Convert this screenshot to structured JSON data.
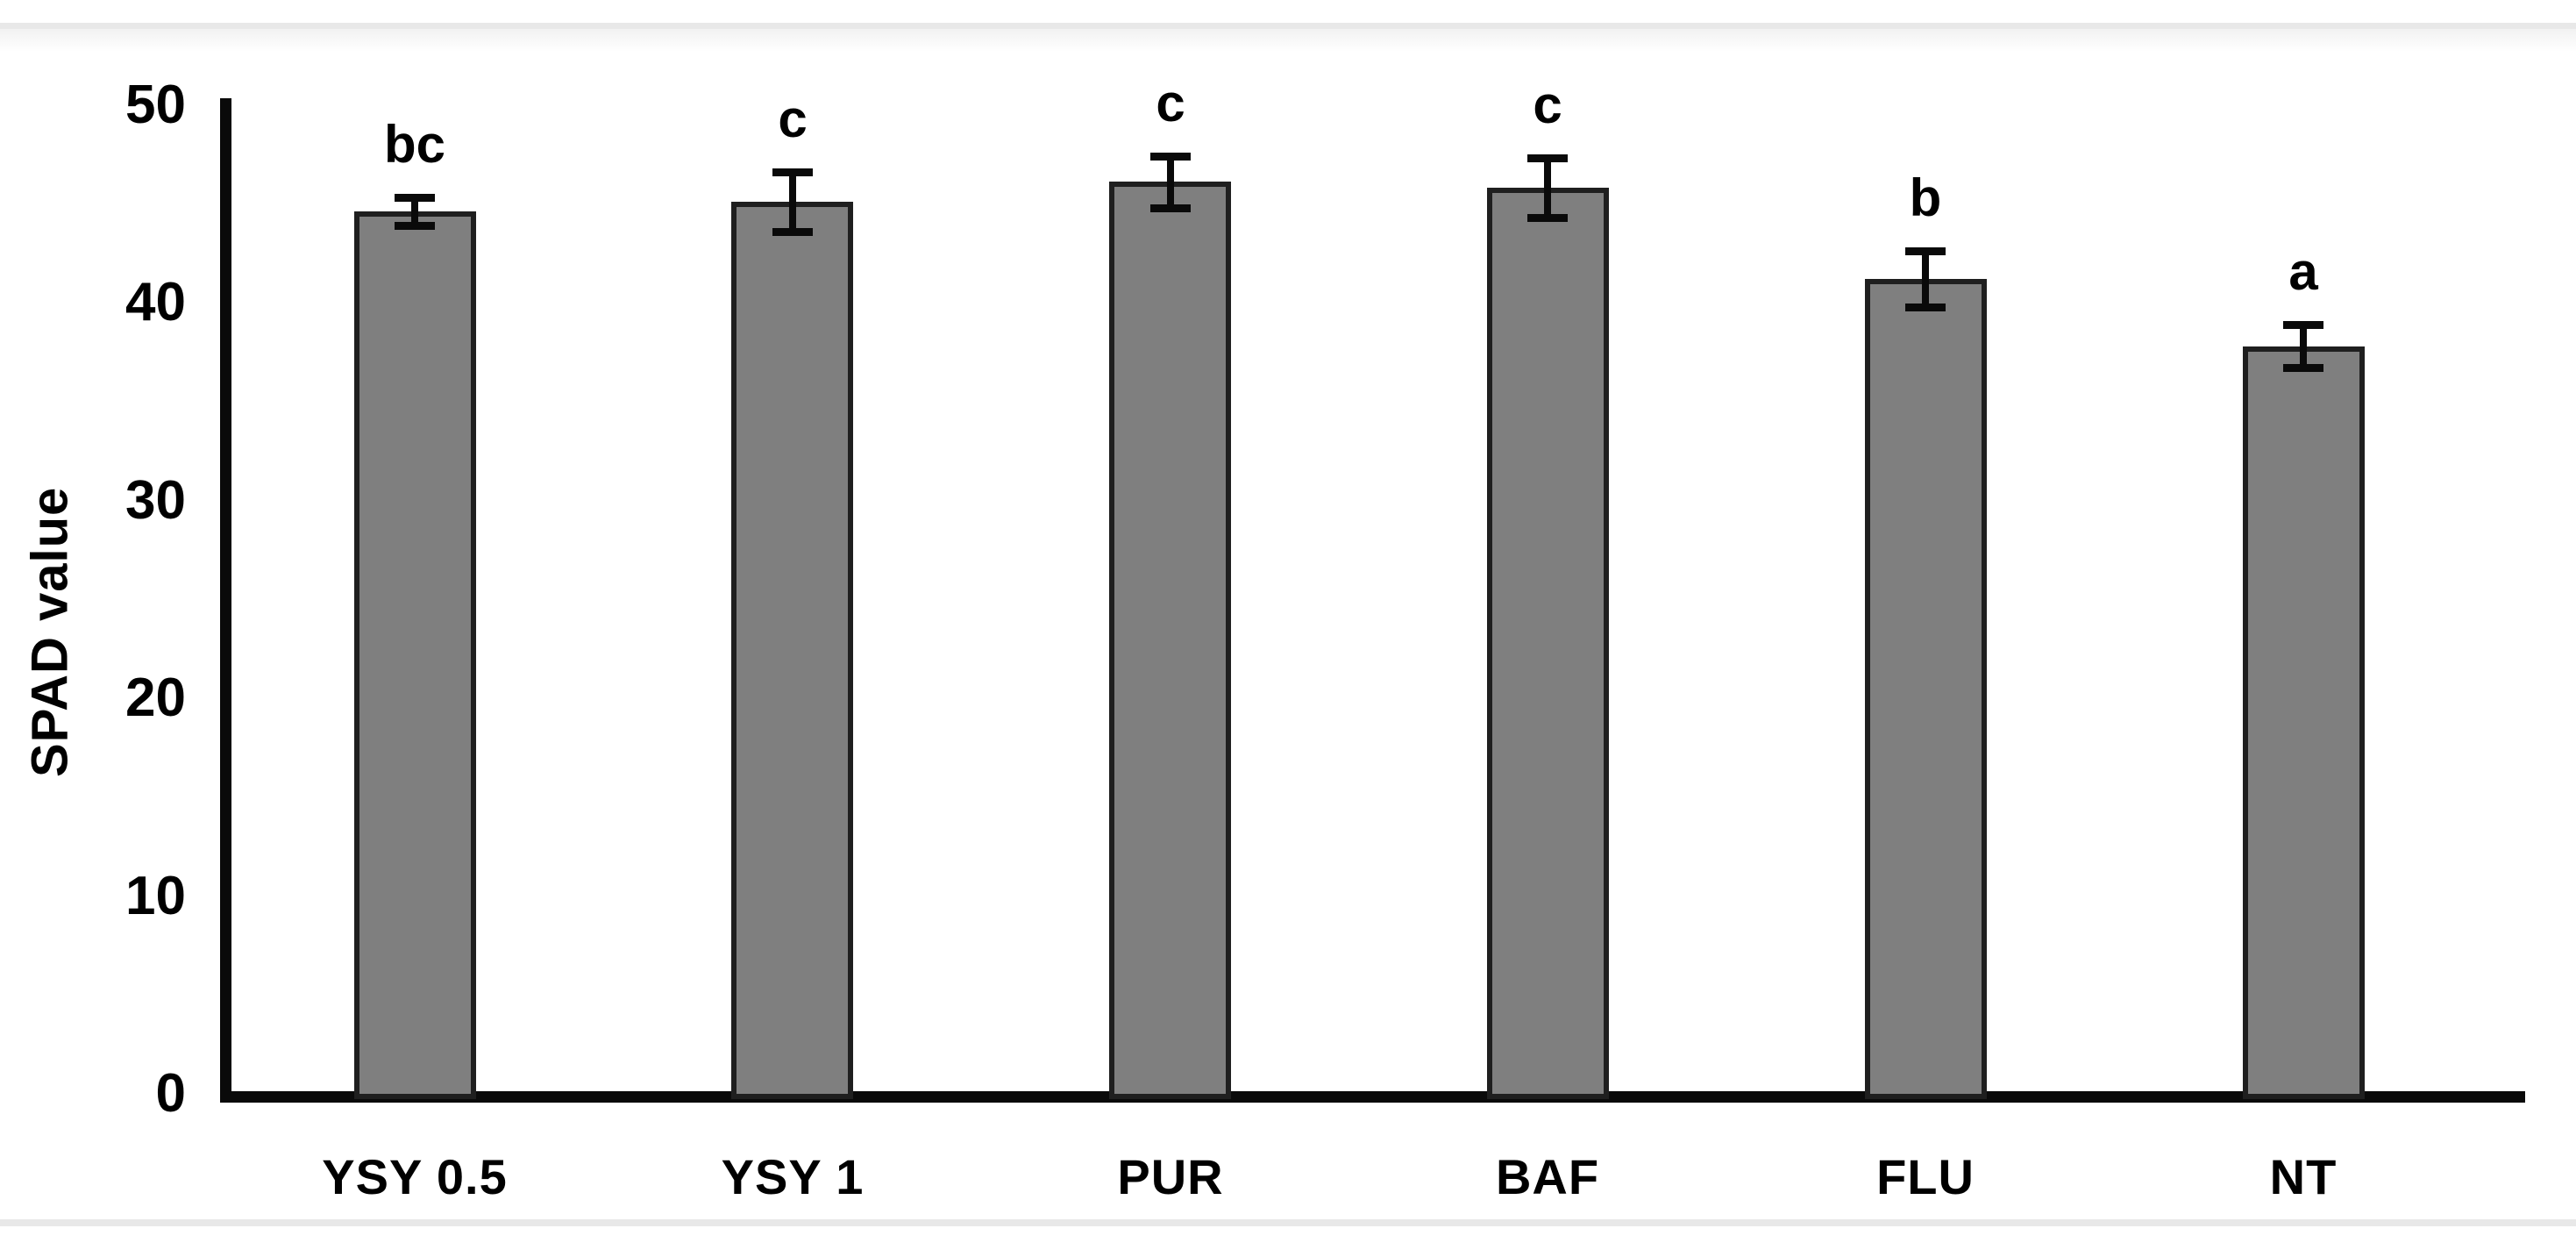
{
  "chart_data": {
    "type": "bar",
    "title": "",
    "ylabel": "SPAD value",
    "xlabel": "",
    "ylim": [
      0,
      50
    ],
    "yticks": [
      0,
      10,
      20,
      30,
      40,
      50
    ],
    "grid": false,
    "legend_position": "none",
    "categories": [
      "YSY 0.5",
      "YSY 1",
      "PUR",
      "BAF",
      "FLU",
      "NT"
    ],
    "values": [
      44.6,
      45.1,
      46.1,
      45.8,
      41.2,
      37.8
    ],
    "error_bars": [
      0.7,
      1.5,
      1.3,
      1.5,
      1.4,
      1.1
    ],
    "significance_letters": [
      "bc",
      "c",
      "c",
      "c",
      "b",
      "a"
    ],
    "colors": {
      "bar_fill": "#7f7f7f",
      "bar_border": "#1f1f1f",
      "axis": "#0a0a0a",
      "text": "#000000",
      "divider": "#e8e8e8"
    }
  }
}
